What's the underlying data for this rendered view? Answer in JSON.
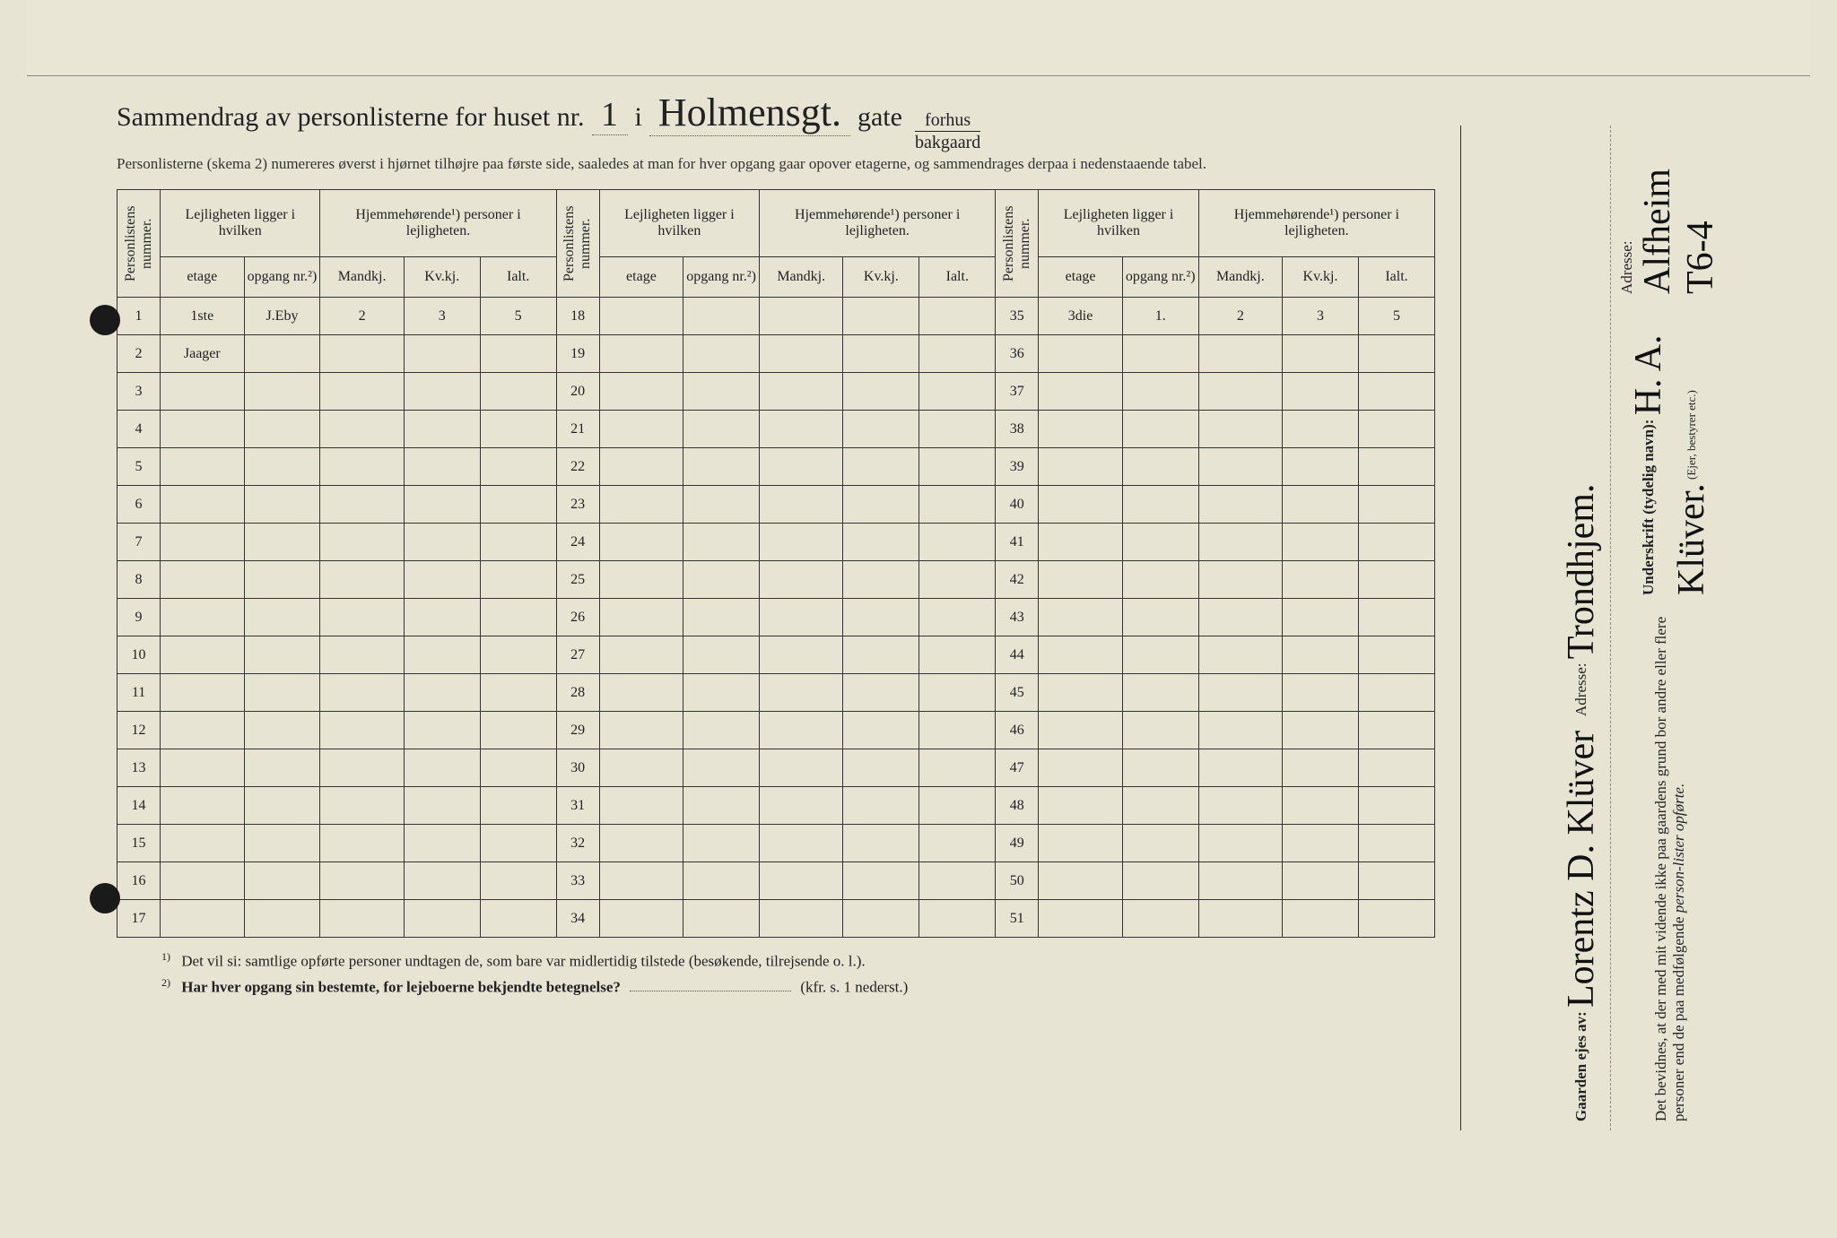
{
  "header": {
    "title_pre": "Sammendrag av personlisterne for huset nr.",
    "huset_nr": "1",
    "sep_i": "i",
    "street_written": "Holmensgt.",
    "gate_label": "gate",
    "fraction_top": "forhus",
    "fraction_bottom": "bakgaard",
    "subtitle": "Personlisterne (skema 2) numereres øverst i hjørnet tilhøjre paa første side, saaledes at man for hver opgang gaar opover etagerne, og sammendrages derpaa i nedenstaaende tabel."
  },
  "columns": {
    "personlistens": "Personlistens nummer.",
    "lejligheten": "Lejligheten ligger i hvilken",
    "etage": "etage",
    "opgang": "opgang nr.²)",
    "hjemme": "Hjemmehørende¹) personer i lejligheten.",
    "mandkj": "Mandkj.",
    "kvkj": "Kv.kj.",
    "ialt": "Ialt."
  },
  "blocks": [
    {
      "start": 1,
      "end": 17
    },
    {
      "start": 18,
      "end": 34
    },
    {
      "start": 35,
      "end": 51
    }
  ],
  "entries": {
    "1": {
      "etage": "1ste",
      "opgang": "J.Eby",
      "mandkj": "2",
      "kvkj": "3",
      "ialt": "5"
    },
    "2": {
      "etage": "Jaager",
      "opgang": "",
      "mandkj": "",
      "kvkj": "",
      "ialt": ""
    },
    "35": {
      "etage": "3die",
      "opgang": "1.",
      "mandkj": "2",
      "kvkj": "3",
      "ialt": "5"
    }
  },
  "footnotes": {
    "fn1": "Det vil si: samtlige opførte personer undtagen de, som bare var midlertidig tilstede (besøkende, tilrejsende o. l.).",
    "fn2_pre": "Har hver opgang sin bestemte, for lejeboerne bekjendte betegnelse?",
    "fn2_post": "(kfr. s. 1 nederst.)"
  },
  "attestation": {
    "owner_label": "Gaarden ejes av:",
    "owner_name": "Lorentz D. Klüver",
    "adresse_label": "Adresse:",
    "owner_adresse": "Trondhjem.",
    "witness_text_1": "Det bevidnes, at der med mit vidende ikke paa gaardens grund bor andre eller flere personer end de paa medfølgende",
    "witness_text_2": "person-lister opførte.",
    "underskrift_label": "Underskrift (tydelig navn):",
    "signature": "H. A. Klüver.",
    "role_hint": "(Ejer, bestyrer etc.)",
    "adresse2_label": "Adresse:",
    "adresse2": "Alfheim T6-4"
  }
}
